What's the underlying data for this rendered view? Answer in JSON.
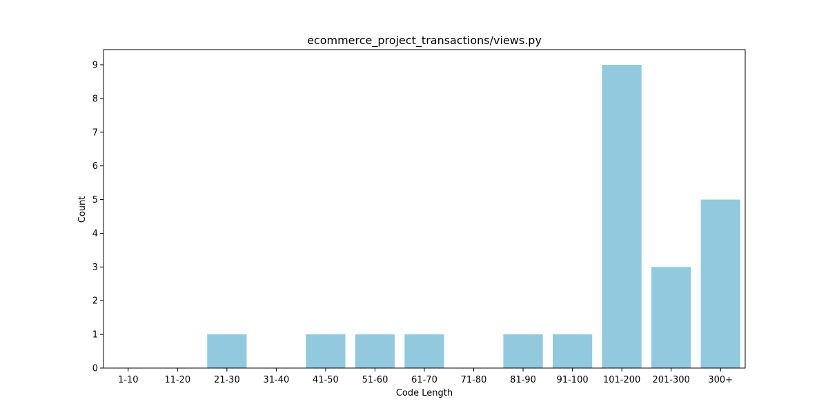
{
  "chart_data": {
    "type": "bar",
    "title": "ecommerce_project_transactions/views.py",
    "xlabel": "Code Length",
    "ylabel": "Count",
    "categories": [
      "1-10",
      "11-20",
      "21-30",
      "31-40",
      "41-50",
      "51-60",
      "61-70",
      "71-80",
      "81-90",
      "91-100",
      "101-200",
      "201-300",
      "300+"
    ],
    "values": [
      0,
      0,
      1,
      0,
      1,
      1,
      1,
      0,
      1,
      1,
      9,
      3,
      5
    ],
    "ylim": [
      0,
      9.45
    ],
    "yticks": [
      0,
      1,
      2,
      3,
      4,
      5,
      6,
      7,
      8,
      9
    ],
    "grid": false,
    "bar_color": "#92c9de",
    "axis_color": "#000000"
  }
}
